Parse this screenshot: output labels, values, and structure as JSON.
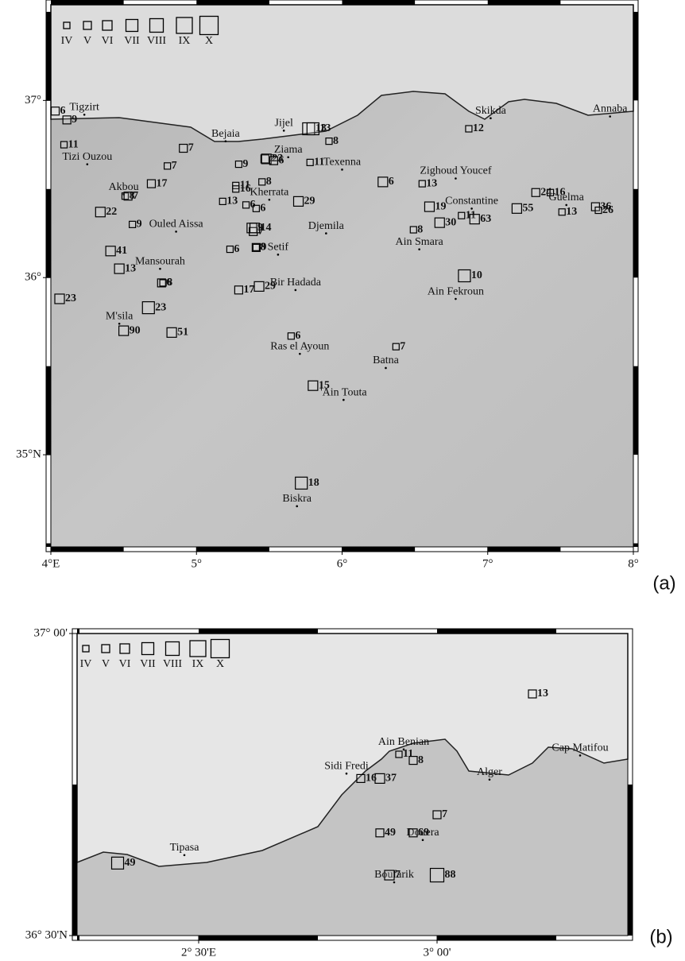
{
  "panels": [
    {
      "label": "(a)",
      "xlim": [
        4.0,
        8.0
      ],
      "ylim": [
        34.48,
        37.54
      ],
      "xticks": [
        {
          "value": 4,
          "label": "4°E"
        },
        {
          "value": 5,
          "label": "5°"
        },
        {
          "value": 6,
          "label": "6°"
        },
        {
          "value": 7,
          "label": "7°"
        },
        {
          "value": 8,
          "label": "8°"
        }
      ],
      "yticks": [
        {
          "value": 35,
          "label": "35°N"
        },
        {
          "value": 36,
          "label": "36°"
        },
        {
          "value": 37,
          "label": "37°"
        }
      ],
      "intensity_classes": [
        "IV",
        "V",
        "VI",
        "VII",
        "VIII",
        "IX",
        "X"
      ],
      "places": [
        {
          "name": "Tigzirt",
          "lon": 4.23,
          "lat": 36.96
        },
        {
          "name": "Bejaia",
          "lon": 5.2,
          "lat": 36.81
        },
        {
          "name": "Jijel",
          "lon": 5.6,
          "lat": 36.87
        },
        {
          "name": "Skikda",
          "lon": 7.02,
          "lat": 36.94
        },
        {
          "name": "Annaba",
          "lon": 7.84,
          "lat": 36.95
        },
        {
          "name": "Tizi Ouzou",
          "lon": 4.25,
          "lat": 36.68
        },
        {
          "name": "Ziama",
          "lon": 5.63,
          "lat": 36.72
        },
        {
          "name": "Texenna",
          "lon": 6.0,
          "lat": 36.65
        },
        {
          "name": "Zighoud Youcef",
          "lon": 6.78,
          "lat": 36.6
        },
        {
          "name": "Akbou",
          "lon": 4.5,
          "lat": 36.51
        },
        {
          "name": "Kherrata",
          "lon": 5.5,
          "lat": 36.48
        },
        {
          "name": "Constantine",
          "lon": 6.89,
          "lat": 36.43
        },
        {
          "name": "Guelma",
          "lon": 7.54,
          "lat": 36.45
        },
        {
          "name": "Ouled Aissa",
          "lon": 4.86,
          "lat": 36.3
        },
        {
          "name": "Djemila",
          "lon": 5.89,
          "lat": 36.29
        },
        {
          "name": "Ain Smara",
          "lon": 6.53,
          "lat": 36.2
        },
        {
          "name": "Setif",
          "lon": 5.56,
          "lat": 36.17
        },
        {
          "name": "Mansourah",
          "lon": 4.75,
          "lat": 36.09
        },
        {
          "name": "Bir Hadada",
          "lon": 5.68,
          "lat": 35.97
        },
        {
          "name": "Ain Fekroun",
          "lon": 6.78,
          "lat": 35.92
        },
        {
          "name": "M'sila",
          "lon": 4.47,
          "lat": 35.78
        },
        {
          "name": "Ras el Ayoun",
          "lon": 5.71,
          "lat": 35.61
        },
        {
          "name": "Batna",
          "lon": 6.3,
          "lat": 35.53
        },
        {
          "name": "'Ain Touta",
          "lon": 6.01,
          "lat": 35.35
        },
        {
          "name": "Biskra",
          "lon": 5.69,
          "lat": 34.75
        }
      ],
      "sites": [
        {
          "label": 6,
          "class": "V",
          "lon": 4.03,
          "lat": 36.94
        },
        {
          "label": 9,
          "class": "V",
          "lon": 4.11,
          "lat": 36.89
        },
        {
          "label": 11,
          "class": "IV",
          "lon": 4.09,
          "lat": 36.75
        },
        {
          "label": 7,
          "class": "V",
          "lon": 4.91,
          "lat": 36.73
        },
        {
          "label": 7,
          "class": "IV",
          "lon": 4.8,
          "lat": 36.63
        },
        {
          "label": 17,
          "class": "V",
          "lon": 4.69,
          "lat": 36.53
        },
        {
          "label": 8,
          "class": "IV",
          "lon": 4.51,
          "lat": 36.46
        },
        {
          "label": 7,
          "class": "V",
          "lon": 4.53,
          "lat": 36.46
        },
        {
          "label": 22,
          "class": "VI",
          "lon": 4.34,
          "lat": 36.37
        },
        {
          "label": 9,
          "class": "IV",
          "lon": 4.56,
          "lat": 36.3
        },
        {
          "label": 41,
          "class": "VI",
          "lon": 4.41,
          "lat": 36.15
        },
        {
          "label": 13,
          "class": "VI",
          "lon": 4.47,
          "lat": 36.05
        },
        {
          "label": 6,
          "class": "V",
          "lon": 4.76,
          "lat": 35.97
        },
        {
          "label": 8,
          "class": "IV",
          "lon": 4.77,
          "lat": 35.97
        },
        {
          "label": 23,
          "class": "VI",
          "lon": 4.06,
          "lat": 35.88
        },
        {
          "label": 23,
          "class": "VII",
          "lon": 4.67,
          "lat": 35.83
        },
        {
          "label": 90,
          "class": "VI",
          "lon": 4.5,
          "lat": 35.7
        },
        {
          "label": 51,
          "class": "VI",
          "lon": 4.83,
          "lat": 35.69
        },
        {
          "label": 9,
          "class": "IV",
          "lon": 5.29,
          "lat": 36.64
        },
        {
          "label": 13,
          "class": "IV",
          "lon": 5.18,
          "lat": 36.43
        },
        {
          "label": 11,
          "class": "IV",
          "lon": 5.27,
          "lat": 36.52
        },
        {
          "label": 16,
          "class": "IV",
          "lon": 5.27,
          "lat": 36.5
        },
        {
          "label": 6,
          "class": "IV",
          "lon": 5.34,
          "lat": 36.41
        },
        {
          "label": 6,
          "class": "IV",
          "lon": 5.41,
          "lat": 36.39
        },
        {
          "label": 6,
          "class": "IV",
          "lon": 5.23,
          "lat": 36.16
        },
        {
          "label": 9,
          "class": "VI",
          "lon": 5.38,
          "lat": 36.28
        },
        {
          "label": 7,
          "class": "V",
          "lon": 5.39,
          "lat": 36.26
        },
        {
          "label": 14,
          "class": "VI",
          "lon": 5.4,
          "lat": 36.28
        },
        {
          "label": 9,
          "class": "V",
          "lon": 5.41,
          "lat": 36.17
        },
        {
          "label": 8,
          "class": "IV",
          "lon": 5.41,
          "lat": 36.17
        },
        {
          "label": 17,
          "class": "V",
          "lon": 5.29,
          "lat": 35.93
        },
        {
          "label": 29,
          "class": "VI",
          "lon": 5.43,
          "lat": 35.95
        },
        {
          "label": 29,
          "class": "VI",
          "lon": 5.7,
          "lat": 36.43
        },
        {
          "label": 2,
          "class": "V",
          "lon": 5.47,
          "lat": 36.67
        },
        {
          "label": 23,
          "class": "VI",
          "lon": 5.48,
          "lat": 36.67
        },
        {
          "label": 6,
          "class": "V",
          "lon": 5.53,
          "lat": 36.66
        },
        {
          "label": 8,
          "class": "IV",
          "lon": 5.45,
          "lat": 36.54
        },
        {
          "label": 13,
          "class": "VII",
          "lon": 5.77,
          "lat": 36.84
        },
        {
          "label": 13,
          "class": "VII",
          "lon": 5.8,
          "lat": 36.84
        },
        {
          "label": 8,
          "class": "IV",
          "lon": 5.91,
          "lat": 36.77
        },
        {
          "label": 11,
          "class": "IV",
          "lon": 5.78,
          "lat": 36.65
        },
        {
          "label": 6,
          "class": "VI",
          "lon": 6.28,
          "lat": 36.54
        },
        {
          "label": 13,
          "class": "IV",
          "lon": 6.55,
          "lat": 36.53
        },
        {
          "label": 12,
          "class": "IV",
          "lon": 6.87,
          "lat": 36.84
        },
        {
          "label": 19,
          "class": "VI",
          "lon": 6.6,
          "lat": 36.4
        },
        {
          "label": 30,
          "class": "VI",
          "lon": 6.67,
          "lat": 36.31
        },
        {
          "label": 11,
          "class": "IV",
          "lon": 6.82,
          "lat": 36.35
        },
        {
          "label": 63,
          "class": "VI",
          "lon": 6.91,
          "lat": 36.33
        },
        {
          "label": 55,
          "class": "VI",
          "lon": 7.2,
          "lat": 36.39
        },
        {
          "label": 8,
          "class": "IV",
          "lon": 6.49,
          "lat": 36.27
        },
        {
          "label": 10,
          "class": "VII",
          "lon": 6.84,
          "lat": 36.01
        },
        {
          "label": 24,
          "class": "V",
          "lon": 7.33,
          "lat": 36.48
        },
        {
          "label": 16,
          "class": "IV",
          "lon": 7.43,
          "lat": 36.48
        },
        {
          "label": 13,
          "class": "IV",
          "lon": 7.51,
          "lat": 36.37
        },
        {
          "label": 36,
          "class": "V",
          "lon": 7.74,
          "lat": 36.4
        },
        {
          "label": 26,
          "class": "IV",
          "lon": 7.76,
          "lat": 36.38
        },
        {
          "label": 6,
          "class": "IV",
          "lon": 5.65,
          "lat": 35.67
        },
        {
          "label": 7,
          "class": "IV",
          "lon": 6.37,
          "lat": 35.61
        },
        {
          "label": 15,
          "class": "VI",
          "lon": 5.8,
          "lat": 35.39
        },
        {
          "label": 18,
          "class": "VII",
          "lon": 5.72,
          "lat": 34.84
        }
      ]
    },
    {
      "label": "(b)",
      "xlim": [
        2.245,
        3.4
      ],
      "ylim": [
        36.5,
        37.0
      ],
      "xticks": [
        {
          "value": 2.5,
          "label": "2° 30'E"
        },
        {
          "value": 3,
          "label": "3° 00'"
        }
      ],
      "yticks": [
        {
          "value": 36.5,
          "label": "36° 30'N"
        },
        {
          "value": 37,
          "label": "37° 00'"
        }
      ],
      "intensity_classes": [
        "IV",
        "V",
        "VI",
        "VII",
        "VIII",
        "IX",
        "X"
      ],
      "places": [
        {
          "name": "Tipasa",
          "lon": 2.47,
          "lat": 36.645
        },
        {
          "name": "Ain Benian",
          "lon": 2.93,
          "lat": 36.82
        },
        {
          "name": "Sidi Fredi",
          "lon": 2.81,
          "lat": 36.78
        },
        {
          "name": "Alger",
          "lon": 3.11,
          "lat": 36.77
        },
        {
          "name": "Cap Matifou",
          "lon": 3.3,
          "lat": 36.81
        },
        {
          "name": "Douera",
          "lon": 2.97,
          "lat": 36.67
        },
        {
          "name": "Boufarik",
          "lon": 2.91,
          "lat": 36.6
        }
      ],
      "sites": [
        {
          "label": 13,
          "class": "V",
          "lon": 3.2,
          "lat": 36.9
        },
        {
          "label": 11,
          "class": "IV",
          "lon": 2.92,
          "lat": 36.8
        },
        {
          "label": 8,
          "class": "V",
          "lon": 2.95,
          "lat": 36.79
        },
        {
          "label": 16,
          "class": "V",
          "lon": 2.84,
          "lat": 36.76
        },
        {
          "label": 37,
          "class": "VI",
          "lon": 2.88,
          "lat": 36.76
        },
        {
          "label": 7,
          "class": "V",
          "lon": 3.0,
          "lat": 36.7
        },
        {
          "label": 69,
          "class": "V",
          "lon": 2.95,
          "lat": 36.67
        },
        {
          "label": 49,
          "class": "V",
          "lon": 2.88,
          "lat": 36.67
        },
        {
          "label": 49,
          "class": "VII",
          "lon": 2.33,
          "lat": 36.62
        },
        {
          "label": 7,
          "class": "VI",
          "lon": 2.9,
          "lat": 36.6
        },
        {
          "label": 88,
          "class": "VIII",
          "lon": 3.0,
          "lat": 36.6
        }
      ]
    }
  ]
}
